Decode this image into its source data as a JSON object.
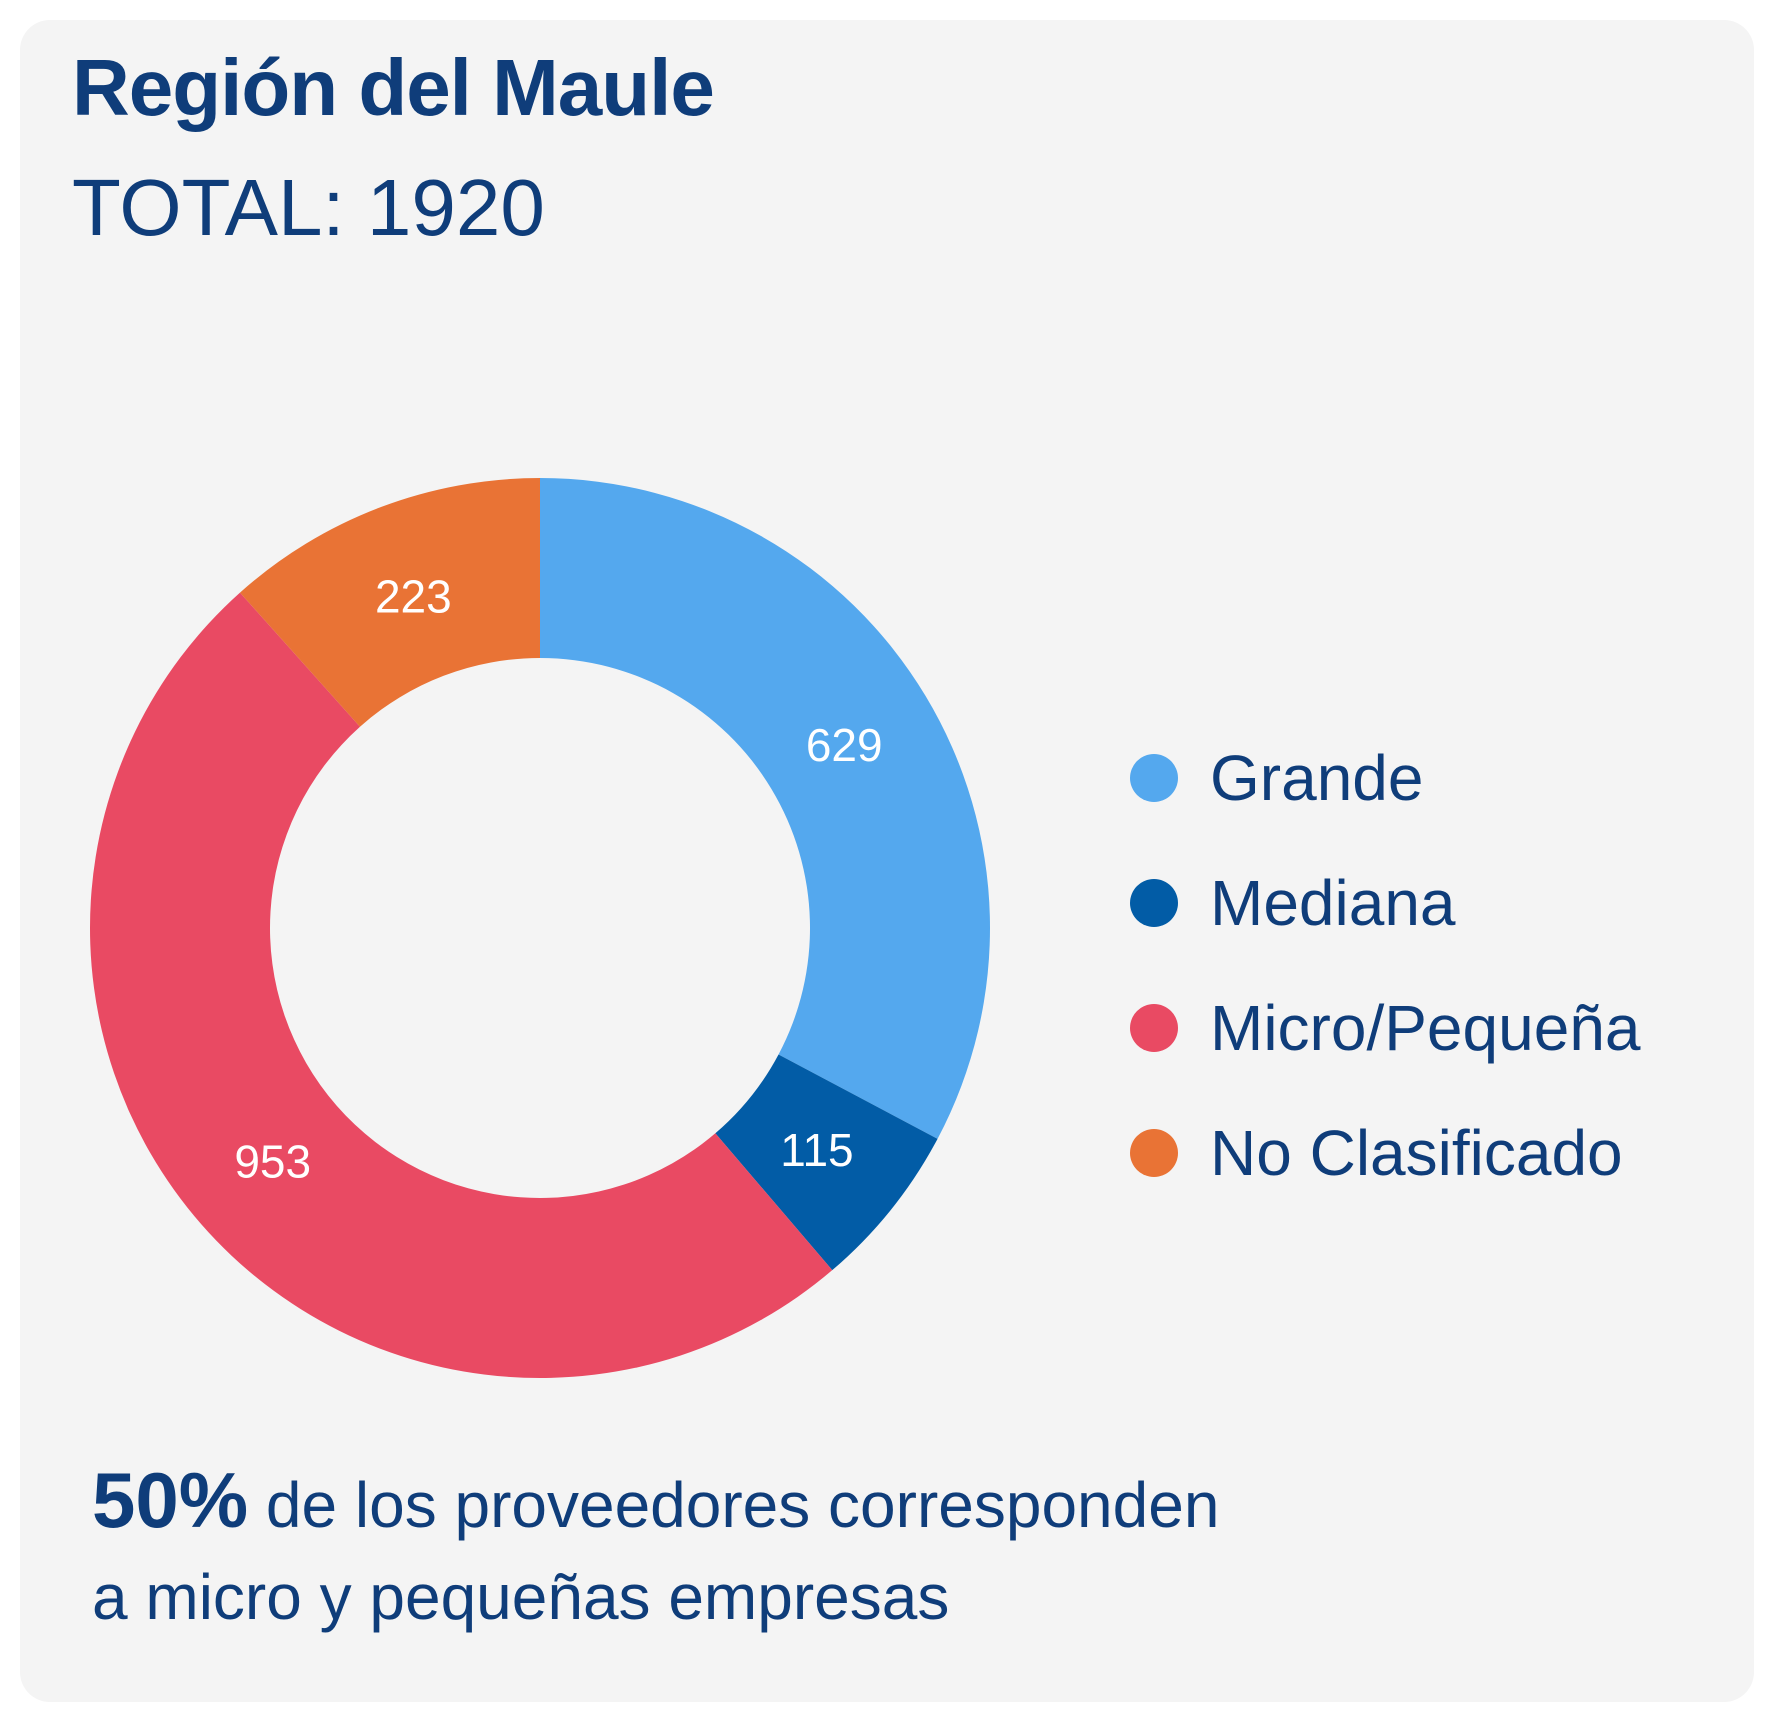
{
  "header": {
    "title": "Región del Maule",
    "subtitle": "TOTAL: 1920"
  },
  "chart_data": {
    "type": "pie",
    "subtype": "donut",
    "categories": [
      "Grande",
      "Mediana",
      "Micro/Pequeña",
      "No Clasificado"
    ],
    "values": [
      629,
      115,
      953,
      223
    ],
    "value_labels": [
      "629",
      "115",
      "953",
      "223"
    ],
    "colors": [
      "#54a8ee",
      "#025ca6",
      "#e94a63",
      "#e97335"
    ],
    "start_angle": "top (12 o'clock), clockwise",
    "legend_position": "right"
  },
  "legend": {
    "items": [
      {
        "label": "Grande",
        "color": "#54a8ee"
      },
      {
        "label": "Mediana",
        "color": "#025ca6"
      },
      {
        "label": "Micro/Pequeña",
        "color": "#e94a63"
      },
      {
        "label": "No Clasificado",
        "color": "#e97335"
      }
    ]
  },
  "footnote": {
    "highlight": "50%",
    "line1": "de los proveedores corresponden",
    "line2": "a micro y pequeñas empresas"
  }
}
